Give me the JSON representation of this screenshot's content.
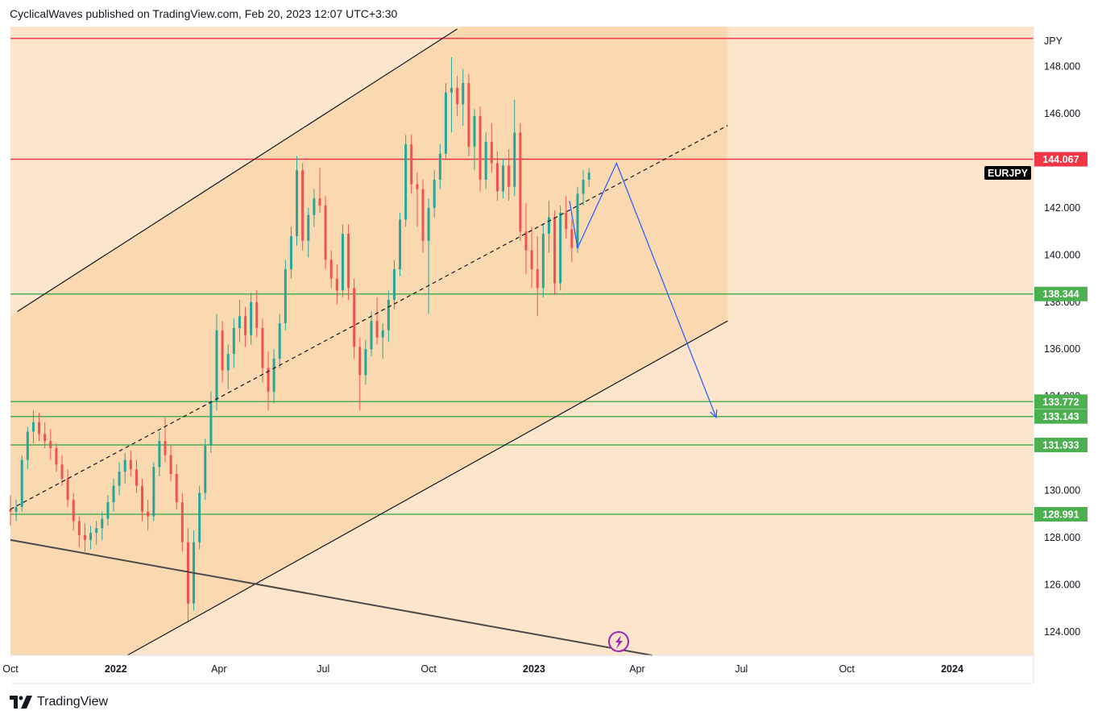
{
  "header": {
    "text": "CyclicalWaves published on TradingView.com, Feb 20, 2023 12:07 UTC+3:30"
  },
  "footer": {
    "brand": "TradingView",
    "logo": "tradingview-logo-icon"
  },
  "chart_data": {
    "type": "candlestick",
    "symbol": "EURJPY",
    "currency": "JPY",
    "ylim": [
      123.0,
      149.7
    ],
    "y_ticks": [
      "148.000",
      "146.000",
      "144.000",
      "142.000",
      "140.000",
      "138.000",
      "136.000",
      "134.000",
      "130.000",
      "128.000",
      "126.000",
      "124.000"
    ],
    "x_ticks": [
      "Oct",
      "2022",
      "Apr",
      "Jul",
      "Oct",
      "2023",
      "Apr",
      "Jul",
      "Oct",
      "2024"
    ],
    "colors": {
      "up": "#26a69a",
      "down": "#ef5350",
      "red_level": "#f23645",
      "green_level": "#4caf50",
      "projection": "#2962ff",
      "channel_fill": "#fbd9b0",
      "background": "#fce5cb"
    },
    "levels": [
      {
        "label": "144.067",
        "value": 144.067,
        "color": "red"
      },
      {
        "label": "138.344",
        "value": 138.344,
        "color": "green"
      },
      {
        "label": "133.772",
        "value": 133.772,
        "color": "green"
      },
      {
        "label": "133.143",
        "value": 133.143,
        "color": "green"
      },
      {
        "label": "131.933",
        "value": 131.933,
        "color": "green"
      },
      {
        "label": "128.991",
        "value": 128.991,
        "color": "green"
      }
    ],
    "top_level": {
      "value": 149.2,
      "color": "red",
      "labeled": false
    },
    "channel": {
      "upper": [
        [
          "2021-10-07",
          137.6
        ],
        [
          "2022-10-26",
          149.6
        ]
      ],
      "lower": [
        [
          "2022-01-11",
          123.0
        ],
        [
          "2023-06-19",
          137.2
        ]
      ],
      "mid": [
        [
          "2021-10-01",
          129.2
        ],
        [
          "2023-06-19",
          145.5
        ]
      ],
      "fill_end": "2023-06-19"
    },
    "falling_line": [
      [
        "2021-10-01",
        127.9
      ],
      [
        "2023-04-14",
        123.0
      ]
    ],
    "projection": [
      [
        "2023-02-01",
        142.3
      ],
      [
        "2023-02-08",
        140.3
      ],
      [
        "2023-03-14",
        143.9
      ],
      [
        "2023-06-09",
        133.1
      ]
    ],
    "candles": [
      [
        "2021-10-01",
        129.2,
        129.8,
        128.5,
        129.1
      ],
      [
        "2021-10-06",
        129.1,
        129.6,
        128.7,
        129.3
      ],
      [
        "2021-10-11",
        129.3,
        131.5,
        129.1,
        131.3
      ],
      [
        "2021-10-16",
        131.3,
        132.7,
        130.9,
        132.5
      ],
      [
        "2021-10-21",
        132.5,
        133.4,
        132.0,
        132.9
      ],
      [
        "2021-10-26",
        132.9,
        133.3,
        132.1,
        132.4
      ],
      [
        "2021-10-31",
        132.4,
        132.9,
        131.8,
        132.1
      ],
      [
        "2021-11-05",
        132.1,
        132.6,
        131.3,
        131.8
      ],
      [
        "2021-11-10",
        131.8,
        132.0,
        130.8,
        131.1
      ],
      [
        "2021-11-15",
        131.1,
        131.5,
        130.2,
        130.5
      ],
      [
        "2021-11-20",
        130.5,
        130.9,
        129.3,
        129.6
      ],
      [
        "2021-11-25",
        129.6,
        129.9,
        128.3,
        128.7
      ],
      [
        "2021-11-30",
        128.7,
        128.9,
        127.6,
        128.1
      ],
      [
        "2021-12-05",
        128.1,
        128.6,
        127.4,
        127.9
      ],
      [
        "2021-12-10",
        127.9,
        128.5,
        127.5,
        128.2
      ],
      [
        "2021-12-15",
        128.2,
        128.7,
        127.7,
        128.4
      ],
      [
        "2021-12-20",
        128.4,
        129.1,
        127.9,
        128.8
      ],
      [
        "2021-12-25",
        128.8,
        129.8,
        128.5,
        129.5
      ],
      [
        "2021-12-30",
        129.5,
        130.5,
        129.1,
        130.2
      ],
      [
        "2022-01-04",
        130.2,
        131.2,
        129.8,
        130.8
      ],
      [
        "2022-01-09",
        130.8,
        131.6,
        130.3,
        131.3
      ],
      [
        "2022-01-14",
        131.3,
        131.7,
        130.6,
        130.9
      ],
      [
        "2022-01-19",
        130.9,
        131.3,
        129.9,
        130.2
      ],
      [
        "2022-01-24",
        130.2,
        130.5,
        128.7,
        129.1
      ],
      [
        "2022-01-29",
        129.1,
        129.6,
        128.3,
        128.9
      ],
      [
        "2022-02-03",
        128.9,
        131.2,
        128.7,
        131.0
      ],
      [
        "2022-02-08",
        131.0,
        132.5,
        130.6,
        132.1
      ],
      [
        "2022-02-13",
        132.1,
        133.1,
        131.2,
        131.5
      ],
      [
        "2022-02-18",
        131.5,
        131.9,
        130.4,
        130.7
      ],
      [
        "2022-02-23",
        130.7,
        131.1,
        129.2,
        129.5
      ],
      [
        "2022-02-28",
        129.5,
        129.9,
        127.4,
        127.8
      ],
      [
        "2022-03-05",
        127.8,
        128.4,
        124.4,
        125.2
      ],
      [
        "2022-03-10",
        125.2,
        128.3,
        124.9,
        127.8
      ],
      [
        "2022-03-15",
        127.8,
        130.2,
        127.5,
        129.9
      ],
      [
        "2022-03-20",
        129.9,
        132.2,
        129.6,
        131.9
      ],
      [
        "2022-03-25",
        131.9,
        134.2,
        131.6,
        133.8
      ],
      [
        "2022-03-30",
        133.8,
        137.5,
        133.4,
        136.8
      ],
      [
        "2022-04-04",
        136.8,
        137.2,
        134.6,
        135.1
      ],
      [
        "2022-04-09",
        135.1,
        136.2,
        134.3,
        135.8
      ],
      [
        "2022-04-14",
        135.8,
        137.3,
        135.2,
        136.9
      ],
      [
        "2022-04-19",
        136.9,
        138.1,
        136.3,
        137.4
      ],
      [
        "2022-04-24",
        137.4,
        137.8,
        136.1,
        136.6
      ],
      [
        "2022-04-29",
        136.6,
        138.4,
        136.2,
        138.0
      ],
      [
        "2022-05-04",
        138.0,
        138.5,
        136.5,
        136.9
      ],
      [
        "2022-05-09",
        136.9,
        137.3,
        134.6,
        135.2
      ],
      [
        "2022-05-14",
        135.2,
        135.9,
        133.4,
        134.2
      ],
      [
        "2022-05-19",
        134.2,
        136.0,
        133.7,
        135.6
      ],
      [
        "2022-05-24",
        135.6,
        137.5,
        135.2,
        137.1
      ],
      [
        "2022-05-29",
        137.1,
        139.8,
        136.8,
        139.4
      ],
      [
        "2022-06-03",
        139.4,
        141.2,
        139.0,
        140.8
      ],
      [
        "2022-06-08",
        140.8,
        144.2,
        140.4,
        143.6
      ],
      [
        "2022-06-13",
        143.6,
        143.9,
        140.2,
        140.6
      ],
      [
        "2022-06-18",
        140.6,
        142.0,
        139.9,
        141.7
      ],
      [
        "2022-06-23",
        141.7,
        142.8,
        141.2,
        142.4
      ],
      [
        "2022-06-28",
        142.4,
        143.7,
        141.8,
        142.1
      ],
      [
        "2022-07-03",
        142.1,
        142.5,
        139.4,
        139.8
      ],
      [
        "2022-07-08",
        139.8,
        140.2,
        138.6,
        139.0
      ],
      [
        "2022-07-13",
        139.0,
        139.6,
        137.9,
        138.5
      ],
      [
        "2022-07-18",
        138.5,
        141.3,
        138.2,
        140.9
      ],
      [
        "2022-07-23",
        140.9,
        141.3,
        138.1,
        138.6
      ],
      [
        "2022-07-28",
        138.6,
        139.0,
        135.6,
        136.1
      ],
      [
        "2022-08-02",
        136.1,
        136.5,
        133.4,
        134.9
      ],
      [
        "2022-08-07",
        134.9,
        136.4,
        134.5,
        136.0
      ],
      [
        "2022-08-12",
        136.0,
        137.6,
        135.7,
        137.2
      ],
      [
        "2022-08-17",
        137.2,
        138.2,
        136.2,
        136.5
      ],
      [
        "2022-08-22",
        136.5,
        137.1,
        135.6,
        136.8
      ],
      [
        "2022-08-27",
        136.8,
        138.5,
        136.3,
        138.1
      ],
      [
        "2022-09-01",
        138.1,
        139.8,
        137.7,
        139.4
      ],
      [
        "2022-09-06",
        139.4,
        141.8,
        139.1,
        141.5
      ],
      [
        "2022-09-11",
        141.5,
        145.1,
        141.2,
        144.7
      ],
      [
        "2022-09-16",
        144.7,
        145.1,
        142.6,
        143.0
      ],
      [
        "2022-09-21",
        143.0,
        143.5,
        141.2,
        142.8
      ],
      [
        "2022-09-26",
        142.8,
        143.2,
        140.1,
        140.6
      ],
      [
        "2022-10-01",
        140.6,
        142.4,
        137.5,
        142.0
      ],
      [
        "2022-10-06",
        142.0,
        143.6,
        141.6,
        143.2
      ],
      [
        "2022-10-11",
        143.2,
        144.7,
        142.8,
        144.3
      ],
      [
        "2022-10-16",
        144.3,
        147.3,
        144.1,
        146.9
      ],
      [
        "2022-10-21",
        146.9,
        148.4,
        145.2,
        147.1
      ],
      [
        "2022-10-26",
        147.1,
        147.6,
        145.9,
        146.4
      ],
      [
        "2022-10-31",
        146.4,
        147.9,
        145.5,
        147.3
      ],
      [
        "2022-11-05",
        147.3,
        147.7,
        144.2,
        144.6
      ],
      [
        "2022-11-10",
        144.6,
        146.2,
        143.6,
        145.9
      ],
      [
        "2022-11-15",
        145.9,
        146.3,
        142.7,
        143.2
      ],
      [
        "2022-11-20",
        143.2,
        145.2,
        142.8,
        144.8
      ],
      [
        "2022-11-25",
        144.8,
        145.6,
        143.5,
        143.9
      ],
      [
        "2022-11-30",
        143.9,
        144.4,
        142.3,
        142.7
      ],
      [
        "2022-12-05",
        142.7,
        144.1,
        142.4,
        143.8
      ],
      [
        "2022-12-10",
        143.8,
        144.5,
        142.3,
        142.9
      ],
      [
        "2022-12-15",
        142.9,
        146.6,
        142.5,
        145.2
      ],
      [
        "2022-12-20",
        145.2,
        145.6,
        140.6,
        141.0
      ],
      [
        "2022-12-25",
        141.0,
        142.2,
        139.2,
        140.2
      ],
      [
        "2022-12-30",
        140.2,
        141.2,
        138.6,
        139.4
      ],
      [
        "2023-01-04",
        139.4,
        140.8,
        137.4,
        138.6
      ],
      [
        "2023-01-09",
        138.6,
        141.3,
        138.2,
        140.9
      ],
      [
        "2023-01-14",
        140.9,
        142.3,
        140.1,
        141.6
      ],
      [
        "2023-01-19",
        141.6,
        141.9,
        138.3,
        138.8
      ],
      [
        "2023-01-24",
        138.8,
        142.1,
        138.5,
        141.8
      ],
      [
        "2023-01-29",
        141.8,
        142.5,
        140.7,
        141.1
      ],
      [
        "2023-02-03",
        141.1,
        141.5,
        139.7,
        140.3
      ],
      [
        "2023-02-08",
        140.3,
        142.9,
        140.1,
        142.6
      ],
      [
        "2023-02-13",
        142.6,
        143.6,
        142.1,
        143.2
      ],
      [
        "2023-02-18",
        143.2,
        143.7,
        142.9,
        143.5
      ]
    ]
  }
}
